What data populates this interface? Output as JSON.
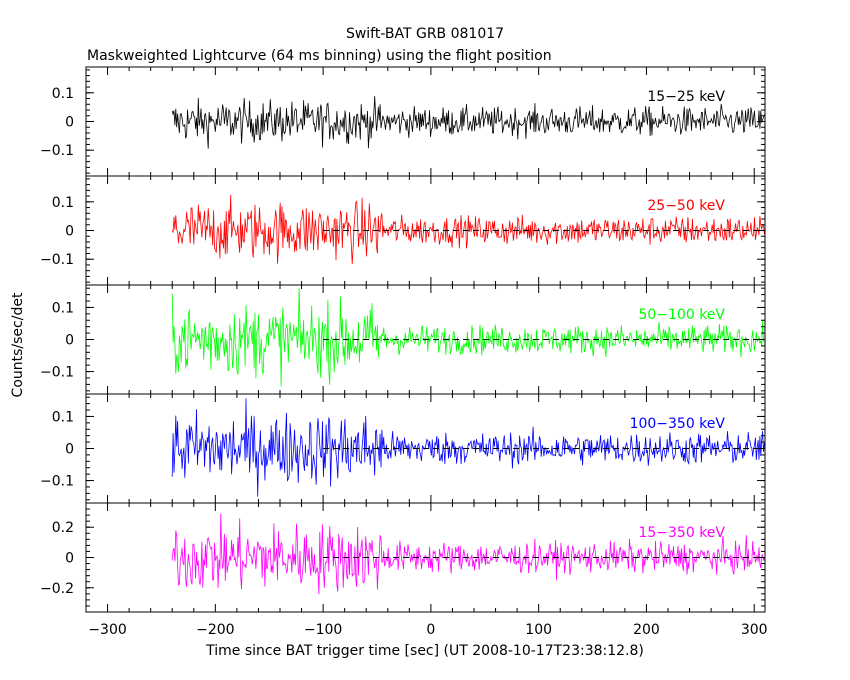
{
  "chart_data": {
    "type": "line",
    "title": "Swift-BAT GRB 081017",
    "subtitle": "Maskweighted Lightcurve (64 ms binning) using the flight position",
    "xlabel": "Time since BAT trigger time [sec] (UT 2008-10-17T23:38:12.8)",
    "ylabel": "Counts/sec/det",
    "xlim": [
      -320,
      310
    ],
    "data_start": -240,
    "noise_change_time": -45,
    "x_ticks": [
      -300,
      -200,
      -100,
      0,
      100,
      200,
      300
    ],
    "series": [
      {
        "name": "15−25 keV",
        "color": "#000000",
        "ylim": [
          -0.19,
          0.19
        ],
        "y_ticks": [
          0.1,
          0,
          -0.1
        ],
        "tick_labels": [
          "0.1",
          "0",
          "−0.1"
        ],
        "amp_before": 0.065,
        "amp_after": 0.045,
        "baseline": false
      },
      {
        "name": "25−50 keV",
        "color": "#ff0000",
        "ylim": [
          -0.19,
          0.19
        ],
        "y_ticks": [
          0.1,
          0,
          -0.1
        ],
        "tick_labels": [
          "0.1",
          "0",
          "−0.1"
        ],
        "amp_before": 0.09,
        "amp_after": 0.045,
        "baseline": true
      },
      {
        "name": "50−100 keV",
        "color": "#00ff00",
        "ylim": [
          -0.17,
          0.17
        ],
        "y_ticks": [
          0.1,
          0,
          -0.1
        ],
        "tick_labels": [
          "0.1",
          "0",
          "−0.1"
        ],
        "amp_before": 0.1,
        "amp_after": 0.04,
        "baseline": true
      },
      {
        "name": "100−350 keV",
        "color": "#0000ff",
        "ylim": [
          -0.17,
          0.17
        ],
        "y_ticks": [
          0.1,
          0,
          -0.1
        ],
        "tick_labels": [
          "0.1",
          "0",
          "−0.1"
        ],
        "amp_before": 0.1,
        "amp_after": 0.045,
        "baseline": true
      },
      {
        "name": "15−350 keV",
        "color": "#ff00ff",
        "ylim": [
          -0.36,
          0.36
        ],
        "y_ticks": [
          0.2,
          0,
          -0.2
        ],
        "tick_labels": [
          "0.2",
          "0",
          "−0.2"
        ],
        "amp_before": 0.2,
        "amp_after": 0.09,
        "baseline": true
      }
    ]
  }
}
